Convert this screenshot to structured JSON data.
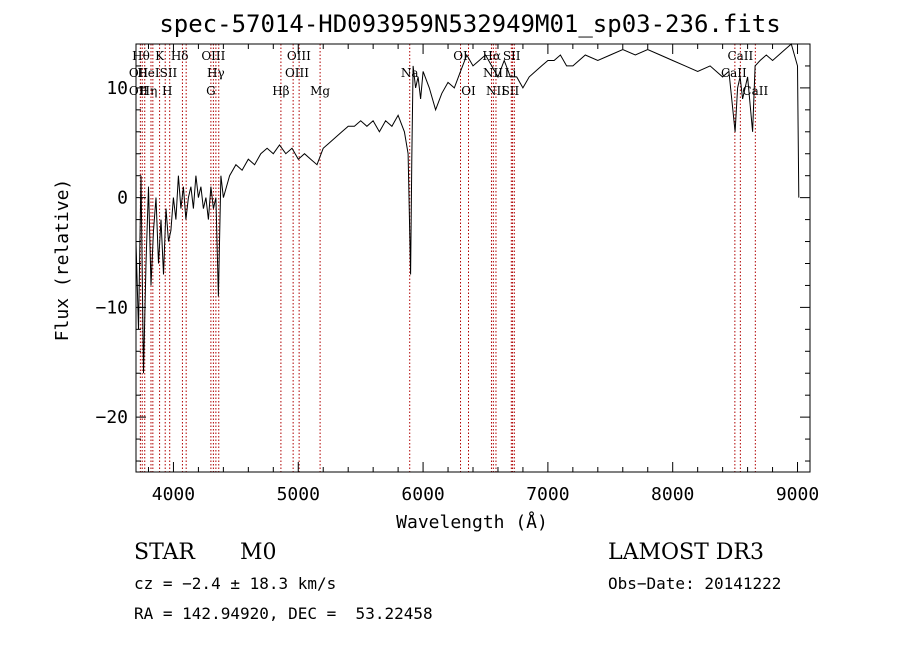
{
  "chart_data": {
    "type": "line",
    "title": "spec-57014-HD093959N532949M01_sp03-236.fits",
    "xlabel": "Wavelength (Å)",
    "ylabel": "Flux (relative)",
    "xlim": [
      3700,
      9100
    ],
    "ylim": [
      -25,
      14
    ],
    "xticks": [
      4000,
      5000,
      6000,
      7000,
      8000,
      9000
    ],
    "yticks": [
      -20,
      -10,
      0,
      10
    ],
    "yticks_labels": [
      "−20",
      "−10",
      "0",
      "10"
    ],
    "series": [
      {
        "name": "spectrum",
        "x": [
          3700,
          3720,
          3740,
          3760,
          3780,
          3800,
          3820,
          3840,
          3860,
          3880,
          3900,
          3920,
          3940,
          3960,
          3980,
          4000,
          4020,
          4040,
          4060,
          4080,
          4100,
          4120,
          4140,
          4160,
          4180,
          4200,
          4220,
          4240,
          4260,
          4280,
          4300,
          4320,
          4340,
          4360,
          4380,
          4400,
          4450,
          4500,
          4550,
          4600,
          4650,
          4700,
          4750,
          4800,
          4850,
          4900,
          4950,
          5000,
          5050,
          5100,
          5150,
          5200,
          5250,
          5300,
          5350,
          5400,
          5450,
          5500,
          5550,
          5600,
          5650,
          5700,
          5750,
          5800,
          5850,
          5880,
          5900,
          5910,
          5920,
          5940,
          5960,
          5980,
          6000,
          6050,
          6100,
          6150,
          6200,
          6250,
          6300,
          6350,
          6400,
          6450,
          6500,
          6550,
          6600,
          6650,
          6700,
          6750,
          6800,
          6850,
          6900,
          6950,
          7000,
          7050,
          7100,
          7150,
          7200,
          7300,
          7400,
          7500,
          7600,
          7700,
          7800,
          7900,
          8000,
          8100,
          8200,
          8300,
          8400,
          8450,
          8500,
          8520,
          8540,
          8560,
          8600,
          8640,
          8660,
          8700,
          8750,
          8800,
          8850,
          8900,
          8950,
          9000,
          9010
        ],
        "y": [
          -4,
          -12,
          2,
          -16,
          -6,
          1,
          -8,
          -3,
          0,
          -6,
          -2,
          -7,
          -1,
          -4,
          -3,
          0,
          -2,
          2,
          -1,
          1,
          -2,
          0,
          1,
          -1,
          2,
          0,
          1,
          -1,
          0,
          -2,
          1,
          -1,
          0,
          -9,
          2,
          0,
          2,
          3,
          2.5,
          3.5,
          3,
          4,
          4.5,
          4,
          4.8,
          4,
          4.5,
          3.5,
          4,
          3.5,
          3,
          4.5,
          5,
          5.5,
          6,
          6.5,
          6.5,
          7,
          6.5,
          7,
          6,
          7,
          6.5,
          7.5,
          6,
          4,
          -7,
          3.5,
          12,
          10,
          11,
          9,
          11.5,
          10,
          8,
          9.5,
          10.5,
          10,
          11.5,
          13,
          12,
          12.5,
          13,
          12,
          11,
          12.5,
          11,
          11,
          10,
          11,
          11.5,
          12,
          12.5,
          12.5,
          13,
          12,
          12,
          13,
          12.5,
          13,
          13.5,
          13,
          13.5,
          13,
          12.5,
          12,
          11.5,
          12,
          11,
          11.5,
          6,
          10,
          11,
          9,
          11,
          6,
          12,
          12.5,
          13,
          12.5,
          13,
          13.5,
          14,
          12,
          0
        ]
      }
    ],
    "lines": [
      {
        "x": 3735,
        "label": "OII"
      },
      {
        "x": 3750,
        "label": "Hθ"
      },
      {
        "x": 3770,
        "label": "Hη"
      },
      {
        "x": 3820,
        "label": "HeI"
      },
      {
        "x": 3835,
        "label": "Hη"
      },
      {
        "x": 3889,
        "label": "K"
      },
      {
        "x": 3934,
        "label": "H"
      },
      {
        "x": 3970,
        "label": "SII"
      },
      {
        "x": 4072,
        "label": "Hδ"
      },
      {
        "x": 4102,
        "label": "SII"
      },
      {
        "x": 4300,
        "label": "G"
      },
      {
        "x": 4320,
        "label": "OIII"
      },
      {
        "x": 4340,
        "label": "Hγ"
      },
      {
        "x": 4363,
        "label": "OIII"
      },
      {
        "x": 4861,
        "label": "Hβ"
      },
      {
        "x": 4959,
        "label": "OIII"
      },
      {
        "x": 5007,
        "label": "OIII"
      },
      {
        "x": 5175,
        "label": "Mg"
      },
      {
        "x": 5893,
        "label": "Na"
      },
      {
        "x": 6300,
        "label": "OI"
      },
      {
        "x": 6364,
        "label": "OI"
      },
      {
        "x": 6548,
        "label": "NII"
      },
      {
        "x": 6563,
        "label": "Hα"
      },
      {
        "x": 6584,
        "label": "NII"
      },
      {
        "x": 6707,
        "label": "Li"
      },
      {
        "x": 6717,
        "label": "SII"
      },
      {
        "x": 6731,
        "label": "SII"
      },
      {
        "x": 8498,
        "label": "CaII"
      },
      {
        "x": 8542,
        "label": "CaII"
      },
      {
        "x": 8662,
        "label": "CaII"
      }
    ],
    "line_label_rows": [
      {
        "row": 0,
        "items": [
          {
            "x": 3740,
            "text": "Hθ"
          },
          {
            "x": 3889,
            "text": "K"
          },
          {
            "x": 4050,
            "text": "Hδ"
          },
          {
            "x": 4320,
            "text": "OIII"
          },
          {
            "x": 5005,
            "text": "OIII"
          },
          {
            "x": 6300,
            "text": "OI"
          },
          {
            "x": 6550,
            "text": "Hα"
          },
          {
            "x": 6710,
            "text": "SII"
          },
          {
            "x": 8542,
            "text": "CaII"
          }
        ]
      },
      {
        "row": 1,
        "items": [
          {
            "x": 3720,
            "text": "OII"
          },
          {
            "x": 3800,
            "text": "HeI"
          },
          {
            "x": 3960,
            "text": "SII"
          },
          {
            "x": 4340,
            "text": "Hγ"
          },
          {
            "x": 4990,
            "text": "OIII"
          },
          {
            "x": 5893,
            "text": "Na"
          },
          {
            "x": 6560,
            "text": "NII"
          },
          {
            "x": 6700,
            "text": "Li"
          },
          {
            "x": 8490,
            "text": "CaII"
          }
        ]
      },
      {
        "row": 2,
        "items": [
          {
            "x": 3720,
            "text": "OII"
          },
          {
            "x": 3800,
            "text": "Hη"
          },
          {
            "x": 3950,
            "text": "H"
          },
          {
            "x": 4300,
            "text": "G"
          },
          {
            "x": 4861,
            "text": "Hβ"
          },
          {
            "x": 5175,
            "text": "Mg"
          },
          {
            "x": 6364,
            "text": "OI"
          },
          {
            "x": 6584,
            "text": "NII"
          },
          {
            "x": 6700,
            "text": "SII"
          },
          {
            "x": 8662,
            "text": "CaII"
          }
        ]
      }
    ],
    "grid": false
  },
  "footer": {
    "object_class": "STAR",
    "subclass": "M0",
    "survey": "LAMOST DR3",
    "cz": "cz = −2.4 ± 18.3 km/s",
    "obs_date": "Obs−Date: 20141222",
    "coords": "RA = 142.94920, DEC =  53.22458"
  }
}
